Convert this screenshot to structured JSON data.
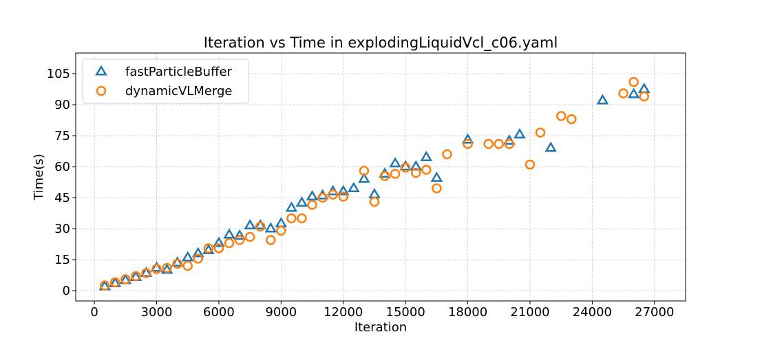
{
  "chart_data": {
    "type": "scatter",
    "title": "Iteration vs Time in explodingLiquidVcl_c06.yaml",
    "xlabel": "Iteration",
    "ylabel": "Time(s)",
    "xlim": [
      -900,
      28500
    ],
    "ylim": [
      -5,
      115
    ],
    "xticks": [
      0,
      3000,
      6000,
      9000,
      12000,
      15000,
      18000,
      21000,
      24000,
      27000
    ],
    "yticks": [
      0,
      15,
      30,
      45,
      60,
      75,
      90,
      105
    ],
    "grid": true,
    "legend_position": "top-left",
    "series": [
      {
        "name": "fastParticleBuffer",
        "marker": "triangle",
        "color": "#1f77b4",
        "points": [
          [
            500,
            2
          ],
          [
            1000,
            3.5
          ],
          [
            1500,
            5
          ],
          [
            2000,
            6.5
          ],
          [
            2500,
            8.5
          ],
          [
            3000,
            11
          ],
          [
            3500,
            10
          ],
          [
            4000,
            13.5
          ],
          [
            4500,
            16
          ],
          [
            5000,
            18
          ],
          [
            5500,
            19.5
          ],
          [
            6000,
            23
          ],
          [
            6500,
            27
          ],
          [
            7000,
            26.5
          ],
          [
            7500,
            31.5
          ],
          [
            8000,
            31.5
          ],
          [
            8500,
            30
          ],
          [
            9000,
            32.5
          ],
          [
            9500,
            40
          ],
          [
            10000,
            42.5
          ],
          [
            10500,
            45.5
          ],
          [
            11000,
            46
          ],
          [
            11500,
            48
          ],
          [
            12000,
            48
          ],
          [
            12500,
            49.5
          ],
          [
            13000,
            54
          ],
          [
            13500,
            46.5
          ],
          [
            14000,
            56.5
          ],
          [
            14500,
            61.5
          ],
          [
            15000,
            60
          ],
          [
            15500,
            60
          ],
          [
            16000,
            64.5
          ],
          [
            16500,
            54.5
          ],
          [
            18000,
            73
          ],
          [
            20000,
            72.5
          ],
          [
            20500,
            75.5
          ],
          [
            22000,
            69
          ],
          [
            24500,
            92
          ],
          [
            26000,
            95
          ],
          [
            26500,
            97.5
          ]
        ]
      },
      {
        "name": "dynamicVLMerge",
        "marker": "circle",
        "color": "#ff7f0e",
        "points": [
          [
            500,
            2.5
          ],
          [
            1000,
            4
          ],
          [
            1500,
            5.5
          ],
          [
            2000,
            7
          ],
          [
            2500,
            8.5
          ],
          [
            3000,
            10.5
          ],
          [
            3500,
            11
          ],
          [
            4000,
            13
          ],
          [
            4500,
            12
          ],
          [
            5000,
            15.5
          ],
          [
            5500,
            20.5
          ],
          [
            6000,
            20.5
          ],
          [
            6500,
            23
          ],
          [
            7000,
            24.5
          ],
          [
            7500,
            26
          ],
          [
            8000,
            31
          ],
          [
            8500,
            24.5
          ],
          [
            9000,
            29
          ],
          [
            9500,
            35
          ],
          [
            10000,
            35
          ],
          [
            10500,
            41.5
          ],
          [
            11000,
            45
          ],
          [
            11500,
            46.5
          ],
          [
            12000,
            45.5
          ],
          [
            13000,
            58
          ],
          [
            13500,
            43
          ],
          [
            14000,
            55.5
          ],
          [
            14500,
            56.5
          ],
          [
            15000,
            59.5
          ],
          [
            15500,
            57
          ],
          [
            16000,
            58.5
          ],
          [
            16500,
            49.5
          ],
          [
            17000,
            66
          ],
          [
            18000,
            71
          ],
          [
            19000,
            71
          ],
          [
            19500,
            71
          ],
          [
            20000,
            71
          ],
          [
            21000,
            61
          ],
          [
            21500,
            76.5
          ],
          [
            22500,
            84.5
          ],
          [
            23000,
            83
          ],
          [
            25500,
            95.5
          ],
          [
            26000,
            101
          ],
          [
            26500,
            94
          ]
        ]
      }
    ]
  }
}
